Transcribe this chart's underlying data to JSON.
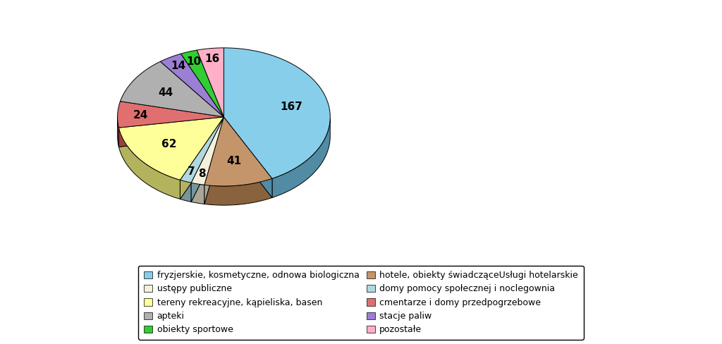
{
  "values": [
    167,
    41,
    8,
    7,
    62,
    24,
    44,
    14,
    10,
    16
  ],
  "colors": [
    "#87CEEB",
    "#C4956A",
    "#F5F0DC",
    "#B0D8E0",
    "#FFFF99",
    "#E07070",
    "#B0B0B0",
    "#9B7FD4",
    "#32CD32",
    "#FFB0C8"
  ],
  "shadow_colors": [
    "#5A9EBF",
    "#9A7050",
    "#C8C3B0",
    "#80B0C0",
    "#C8C800",
    "#B05050",
    "#808080",
    "#705FA0",
    "#208020",
    "#C88098"
  ],
  "legend_col1": [
    "fryzjerskie, kosmetyczne, odnowa biologiczna",
    "ustępy publiczne",
    "tereny rekreacyjne, kąpieliska, basen",
    "apteki",
    "obiekty sportowe"
  ],
  "legend_col2": [
    "hotele, obiekty świadcząceUsługi hotelarskie",
    "domy pomocy społecznej i noclegownia",
    "cmentarze i domy przedpogrzebowe",
    "stacje paliw",
    "pozostałe"
  ],
  "legend_colors_col1": [
    "#87CEEB",
    "#F5F0DC",
    "#FFFF99",
    "#B0B0B0",
    "#32CD32"
  ],
  "legend_colors_col2": [
    "#C4956A",
    "#B0D8E0",
    "#E07070",
    "#9B7FD4",
    "#FFB0C8"
  ],
  "startangle": 90,
  "background_color": "#ffffff",
  "label_fontsize": 11,
  "legend_fontsize": 9
}
